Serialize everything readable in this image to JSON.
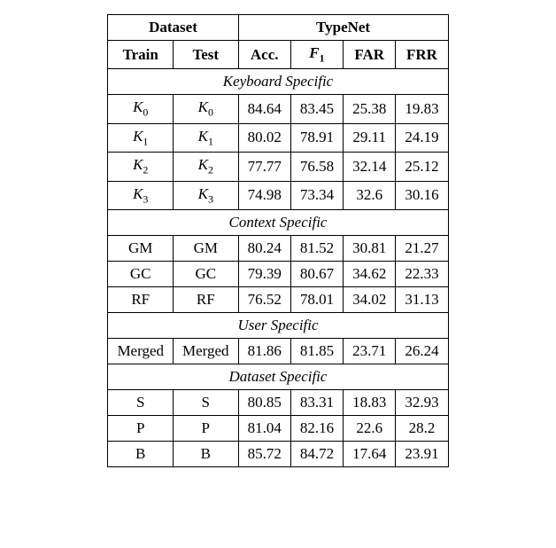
{
  "headers": {
    "dataset": "Dataset",
    "typenet": "TypeNet",
    "train": "Train",
    "test": "Test",
    "acc": "Acc.",
    "f1_f": "F",
    "f1_sub": "1",
    "far": "FAR",
    "frr": "FRR"
  },
  "sections": {
    "keyboard": "Keyboard Specific",
    "context": "Context Specific",
    "user": "User Specific",
    "dataset": "Dataset Specific"
  },
  "k_label": "K",
  "rows": {
    "k0": {
      "sub": "0",
      "acc": "84.64",
      "f1": "83.45",
      "far": "25.38",
      "frr": "19.83"
    },
    "k1": {
      "sub": "1",
      "acc": "80.02",
      "f1": "78.91",
      "far": "29.11",
      "frr": "24.19"
    },
    "k2": {
      "sub": "2",
      "acc": "77.77",
      "f1": "76.58",
      "far": "32.14",
      "frr": "25.12"
    },
    "k3": {
      "sub": "3",
      "acc": "74.98",
      "f1": "73.34",
      "far": "32.6",
      "frr": "30.16"
    },
    "gm": {
      "train": "GM",
      "test": "GM",
      "acc": "80.24",
      "f1": "81.52",
      "far": "30.81",
      "frr": "21.27"
    },
    "gc": {
      "train": "GC",
      "test": "GC",
      "acc": "79.39",
      "f1": "80.67",
      "far": "34.62",
      "frr": "22.33"
    },
    "rf": {
      "train": "RF",
      "test": "RF",
      "acc": "76.52",
      "f1": "78.01",
      "far": "34.02",
      "frr": "31.13"
    },
    "merged": {
      "train": "Merged",
      "test": "Merged",
      "acc": "81.86",
      "f1": "81.85",
      "far": "23.71",
      "frr": "26.24"
    },
    "s": {
      "train": "S",
      "test": "S",
      "acc": "80.85",
      "f1": "83.31",
      "far": "18.83",
      "frr": "32.93"
    },
    "p": {
      "train": "P",
      "test": "P",
      "acc": "81.04",
      "f1": "82.16",
      "far": "22.6",
      "frr": "28.2"
    },
    "b": {
      "train": "B",
      "test": "B",
      "acc": "85.72",
      "f1": "84.72",
      "far": "17.64",
      "frr": "23.91"
    }
  }
}
